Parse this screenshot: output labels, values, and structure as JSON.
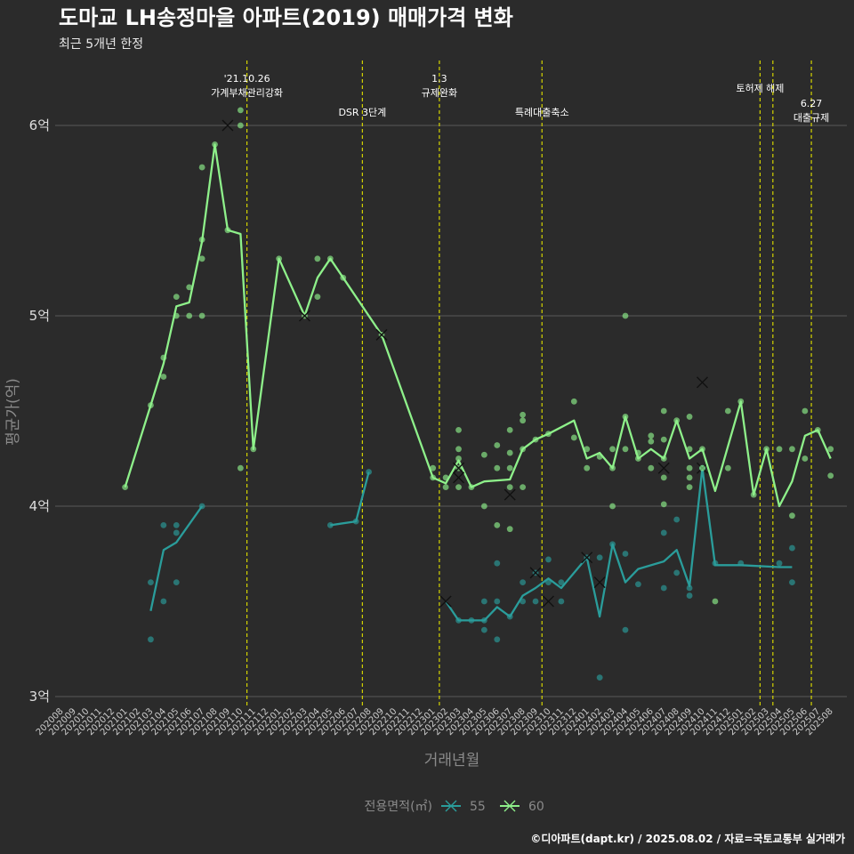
{
  "title": "도마교 LH송정마을 아파트(2019) 매매가격 변화",
  "subtitle": "최근 5개년 한정",
  "caption": "©디아파트(dapt.kr) / 2025.08.02 / 자료=국토교통부 실거래가",
  "colors": {
    "background": "#2b2b2b",
    "grid": "#5a5a5a",
    "s55": "#2a9d9b",
    "s60": "#8ef08a",
    "event_line": "#d4d400"
  },
  "chart_data": {
    "type": "line",
    "xlabel": "거래년월",
    "ylabel": "평균가(억)",
    "ylim": [
      3,
      6
    ],
    "yticks": [
      {
        "value": 3,
        "label": "3억"
      },
      {
        "value": 4,
        "label": "4억"
      },
      {
        "value": 5,
        "label": "5억"
      },
      {
        "value": 6,
        "label": "6억"
      }
    ],
    "categories": [
      "202008",
      "202009",
      "202010",
      "202011",
      "202012",
      "202101",
      "202102",
      "202103",
      "202104",
      "202105",
      "202106",
      "202107",
      "202108",
      "202109",
      "202110",
      "202111",
      "202112",
      "202201",
      "202202",
      "202203",
      "202204",
      "202205",
      "202206",
      "202207",
      "202208",
      "202209",
      "202210",
      "202211",
      "202212",
      "202301",
      "202302",
      "202303",
      "202304",
      "202305",
      "202306",
      "202307",
      "202308",
      "202309",
      "202310",
      "202311",
      "202312",
      "202401",
      "202402",
      "202403",
      "202404",
      "202405",
      "202406",
      "202407",
      "202408",
      "202409",
      "202410",
      "202411",
      "202412",
      "202501",
      "202502",
      "202503",
      "202504",
      "202505",
      "202506",
      "202507",
      "202508"
    ],
    "legend": {
      "title": "전용면적(㎡)",
      "position": "bottom"
    },
    "series": [
      {
        "name": "55",
        "color_key": "s55",
        "segments": [
          [
            [
              7,
              3.45
            ],
            [
              8,
              3.77
            ],
            [
              9,
              3.81
            ],
            [
              11,
              4.0
            ]
          ],
          [
            [
              21,
              3.9
            ],
            [
              23,
              3.92
            ],
            [
              24,
              4.18
            ]
          ],
          [
            [
              30,
              3.5
            ],
            [
              31,
              3.4
            ],
            [
              32,
              3.4
            ],
            [
              33,
              3.4
            ],
            [
              34,
              3.47
            ],
            [
              35,
              3.42
            ],
            [
              36,
              3.53
            ],
            [
              37,
              3.57
            ],
            [
              38,
              3.62
            ],
            [
              39,
              3.57
            ],
            [
              41,
              3.73
            ],
            [
              42,
              3.42
            ],
            [
              43,
              3.8
            ],
            [
              44,
              3.6
            ],
            [
              45,
              3.67
            ],
            [
              47,
              3.71
            ],
            [
              48,
              3.77
            ],
            [
              49,
              3.58
            ],
            [
              50,
              4.2
            ],
            [
              51,
              3.69
            ],
            [
              53,
              3.69
            ],
            [
              56,
              3.68
            ],
            [
              57,
              3.68
            ]
          ]
        ],
        "points": [
          [
            7,
            3.6
          ],
          [
            7,
            3.3
          ],
          [
            8,
            3.9
          ],
          [
            8,
            3.5
          ],
          [
            9,
            3.9
          ],
          [
            9,
            3.86
          ],
          [
            9,
            3.6
          ],
          [
            11,
            4.0
          ],
          [
            21,
            3.9
          ],
          [
            23,
            3.92
          ],
          [
            24,
            4.18
          ],
          [
            31,
            3.4
          ],
          [
            32,
            3.4
          ],
          [
            33,
            3.35
          ],
          [
            33,
            3.4
          ],
          [
            33,
            3.5
          ],
          [
            34,
            3.5
          ],
          [
            34,
            3.3
          ],
          [
            34,
            3.7
          ],
          [
            35,
            3.42
          ],
          [
            36,
            3.5
          ],
          [
            36,
            3.6
          ],
          [
            37,
            3.65
          ],
          [
            37,
            3.5
          ],
          [
            38,
            3.72
          ],
          [
            38,
            3.6
          ],
          [
            39,
            3.6
          ],
          [
            39,
            3.5
          ],
          [
            41,
            3.73
          ],
          [
            42,
            3.1
          ],
          [
            42,
            3.73
          ],
          [
            43,
            3.8
          ],
          [
            44,
            3.75
          ],
          [
            44,
            3.35
          ],
          [
            45,
            3.59
          ],
          [
            47,
            3.57
          ],
          [
            47,
            3.86
          ],
          [
            48,
            3.93
          ],
          [
            48,
            3.65
          ],
          [
            49,
            3.53
          ],
          [
            49,
            3.57
          ],
          [
            50,
            4.2
          ],
          [
            51,
            3.7
          ],
          [
            53,
            3.7
          ],
          [
            56,
            3.7
          ],
          [
            57,
            3.78
          ],
          [
            57,
            3.6
          ]
        ],
        "markers_x": [
          [
            30,
            3.5
          ],
          [
            37,
            3.65
          ],
          [
            38,
            3.5
          ],
          [
            41,
            3.73
          ],
          [
            42,
            3.6
          ],
          [
            50,
            4.2
          ]
        ]
      },
      {
        "name": "60",
        "color_key": "s60",
        "segments": [
          [
            [
              5,
              4.1
            ],
            [
              7,
              4.53
            ],
            [
              8,
              4.75
            ],
            [
              9,
              5.05
            ],
            [
              10,
              5.07
            ],
            [
              11,
              5.39
            ],
            [
              12,
              5.9
            ],
            [
              13,
              5.45
            ],
            [
              14,
              5.43
            ],
            [
              15,
              4.3
            ],
            [
              17,
              5.3
            ],
            [
              19,
              5.0
            ],
            [
              20,
              5.2
            ],
            [
              21,
              5.3
            ],
            [
              22,
              5.2
            ],
            [
              25,
              4.9
            ],
            [
              29,
              4.15
            ],
            [
              30,
              4.12
            ],
            [
              31,
              4.24
            ],
            [
              32,
              4.1
            ],
            [
              33,
              4.13
            ],
            [
              35,
              4.14
            ],
            [
              36,
              4.3
            ],
            [
              37,
              4.35
            ],
            [
              38,
              4.38
            ],
            [
              40,
              4.45
            ],
            [
              41,
              4.25
            ],
            [
              42,
              4.28
            ],
            [
              43,
              4.2
            ],
            [
              44,
              4.47
            ],
            [
              45,
              4.25
            ],
            [
              46,
              4.3
            ],
            [
              47,
              4.25
            ],
            [
              48,
              4.45
            ],
            [
              49,
              4.25
            ],
            [
              50,
              4.3
            ],
            [
              51,
              4.08
            ],
            [
              53,
              4.55
            ],
            [
              54,
              4.06
            ],
            [
              55,
              4.3
            ],
            [
              56,
              4.0
            ],
            [
              57,
              4.13
            ],
            [
              58,
              4.37
            ],
            [
              59,
              4.4
            ],
            [
              60,
              4.25
            ]
          ]
        ],
        "points": [
          [
            5,
            4.1
          ],
          [
            7,
            4.53
          ],
          [
            8,
            4.78
          ],
          [
            8,
            4.68
          ],
          [
            9,
            5.1
          ],
          [
            9,
            5.0
          ],
          [
            10,
            5.15
          ],
          [
            10,
            5.0
          ],
          [
            11,
            5.78
          ],
          [
            11,
            5.4
          ],
          [
            11,
            5.3
          ],
          [
            11,
            5.0
          ],
          [
            12,
            5.9
          ],
          [
            13,
            5.45
          ],
          [
            14,
            6.08
          ],
          [
            14,
            6.0
          ],
          [
            14,
            4.2
          ],
          [
            15,
            4.3
          ],
          [
            17,
            5.3
          ],
          [
            19,
            5.0
          ],
          [
            20,
            5.3
          ],
          [
            20,
            5.1
          ],
          [
            21,
            5.3
          ],
          [
            22,
            5.2
          ],
          [
            25,
            4.9
          ],
          [
            29,
            4.2
          ],
          [
            29,
            4.15
          ],
          [
            30,
            4.1
          ],
          [
            30,
            4.15
          ],
          [
            31,
            4.4
          ],
          [
            31,
            4.3
          ],
          [
            31,
            4.25
          ],
          [
            31,
            4.2
          ],
          [
            31,
            4.1
          ],
          [
            32,
            4.1
          ],
          [
            33,
            4.27
          ],
          [
            33,
            4.0
          ],
          [
            34,
            4.32
          ],
          [
            34,
            4.2
          ],
          [
            34,
            3.9
          ],
          [
            35,
            4.4
          ],
          [
            35,
            4.28
          ],
          [
            35,
            4.2
          ],
          [
            35,
            4.1
          ],
          [
            35,
            3.88
          ],
          [
            36,
            4.48
          ],
          [
            36,
            4.45
          ],
          [
            36,
            4.3
          ],
          [
            36,
            4.1
          ],
          [
            37,
            4.35
          ],
          [
            38,
            4.38
          ],
          [
            40,
            4.55
          ],
          [
            40,
            4.36
          ],
          [
            41,
            4.3
          ],
          [
            41,
            4.2
          ],
          [
            42,
            4.26
          ],
          [
            43,
            4.3
          ],
          [
            43,
            4.2
          ],
          [
            43,
            4.0
          ],
          [
            44,
            5.0
          ],
          [
            44,
            4.47
          ],
          [
            44,
            4.3
          ],
          [
            45,
            4.25
          ],
          [
            45,
            4.28
          ],
          [
            46,
            4.37
          ],
          [
            46,
            4.34
          ],
          [
            46,
            4.2
          ],
          [
            47,
            4.5
          ],
          [
            47,
            4.35
          ],
          [
            47,
            4.25
          ],
          [
            47,
            4.15
          ],
          [
            47,
            4.01
          ],
          [
            48,
            4.45
          ],
          [
            49,
            4.47
          ],
          [
            49,
            4.3
          ],
          [
            49,
            4.2
          ],
          [
            49,
            4.15
          ],
          [
            49,
            4.1
          ],
          [
            50,
            4.3
          ],
          [
            50,
            4.2
          ],
          [
            51,
            3.5
          ],
          [
            52,
            4.5
          ],
          [
            52,
            4.2
          ],
          [
            53,
            4.55
          ],
          [
            54,
            4.06
          ],
          [
            55,
            4.3
          ],
          [
            56,
            4.3
          ],
          [
            57,
            4.3
          ],
          [
            57,
            3.95
          ],
          [
            58,
            4.5
          ],
          [
            58,
            4.25
          ],
          [
            59,
            4.4
          ],
          [
            60,
            4.3
          ],
          [
            60,
            4.16
          ]
        ],
        "markers_x": [
          [
            13,
            6.0
          ],
          [
            19,
            5.0
          ],
          [
            25,
            4.9
          ],
          [
            31,
            4.2
          ],
          [
            31,
            4.15
          ],
          [
            35,
            4.06
          ],
          [
            50,
            4.65
          ],
          [
            47,
            4.2
          ]
        ]
      }
    ],
    "events": [
      {
        "x": 14.5,
        "lines": [
          "'21.10.26",
          "가계부채관리강화"
        ],
        "level": 0
      },
      {
        "x": 23.5,
        "lines": [
          "DSR 3단계"
        ],
        "level": 2
      },
      {
        "x": 29.5,
        "lines": [
          "1.3",
          "규제완화"
        ],
        "level": 0
      },
      {
        "x": 37.5,
        "lines": [
          "특례대출축소"
        ],
        "level": 2
      },
      {
        "x": 54.5,
        "lines": [
          "토허제 해제"
        ],
        "level": 1
      },
      {
        "x": 55.5,
        "lines": [],
        "level": 1
      },
      {
        "x": 58.5,
        "lines": [
          "6.27",
          "대출규제"
        ],
        "level": 3
      }
    ]
  }
}
